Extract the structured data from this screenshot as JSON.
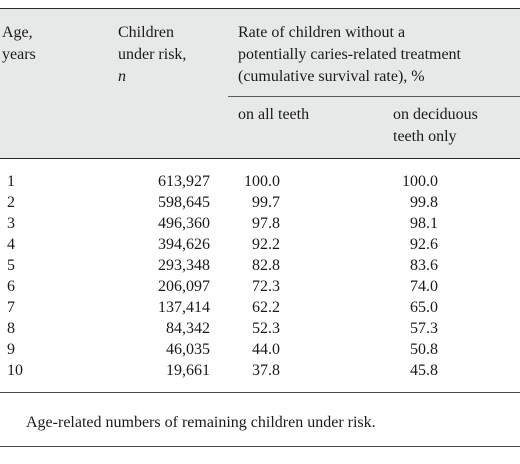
{
  "table": {
    "headers": {
      "age": [
        "Age,",
        "years"
      ],
      "children": [
        "Children",
        "under risk,",
        "n"
      ],
      "rate": [
        "Rate of children without a",
        "potentially caries-related treatment",
        "(cumulative survival rate), %"
      ],
      "all_teeth": "on all teeth",
      "deciduous": [
        "on deciduous",
        "teeth only"
      ]
    },
    "rows": [
      {
        "age": "1",
        "n": "613,927",
        "all": "100.0",
        "deciduous": "100.0"
      },
      {
        "age": "2",
        "n": "598,645",
        "all": "99.7",
        "deciduous": "99.8"
      },
      {
        "age": "3",
        "n": "496,360",
        "all": "97.8",
        "deciduous": "98.1"
      },
      {
        "age": "4",
        "n": "394,626",
        "all": "92.2",
        "deciduous": "92.6"
      },
      {
        "age": "5",
        "n": "293,348",
        "all": "82.8",
        "deciduous": "83.6"
      },
      {
        "age": "6",
        "n": "206,097",
        "all": "72.3",
        "deciduous": "74.0"
      },
      {
        "age": "7",
        "n": "137,414",
        "all": "62.2",
        "deciduous": "65.0"
      },
      {
        "age": "8",
        "n": "84,342",
        "all": "52.3",
        "deciduous": "57.3"
      },
      {
        "age": "9",
        "n": "46,035",
        "all": "44.0",
        "deciduous": "50.8"
      },
      {
        "age": "10",
        "n": "19,661",
        "all": "37.8",
        "deciduous": "45.8"
      }
    ],
    "footnote": "Age-related numbers of remaining children under risk."
  }
}
